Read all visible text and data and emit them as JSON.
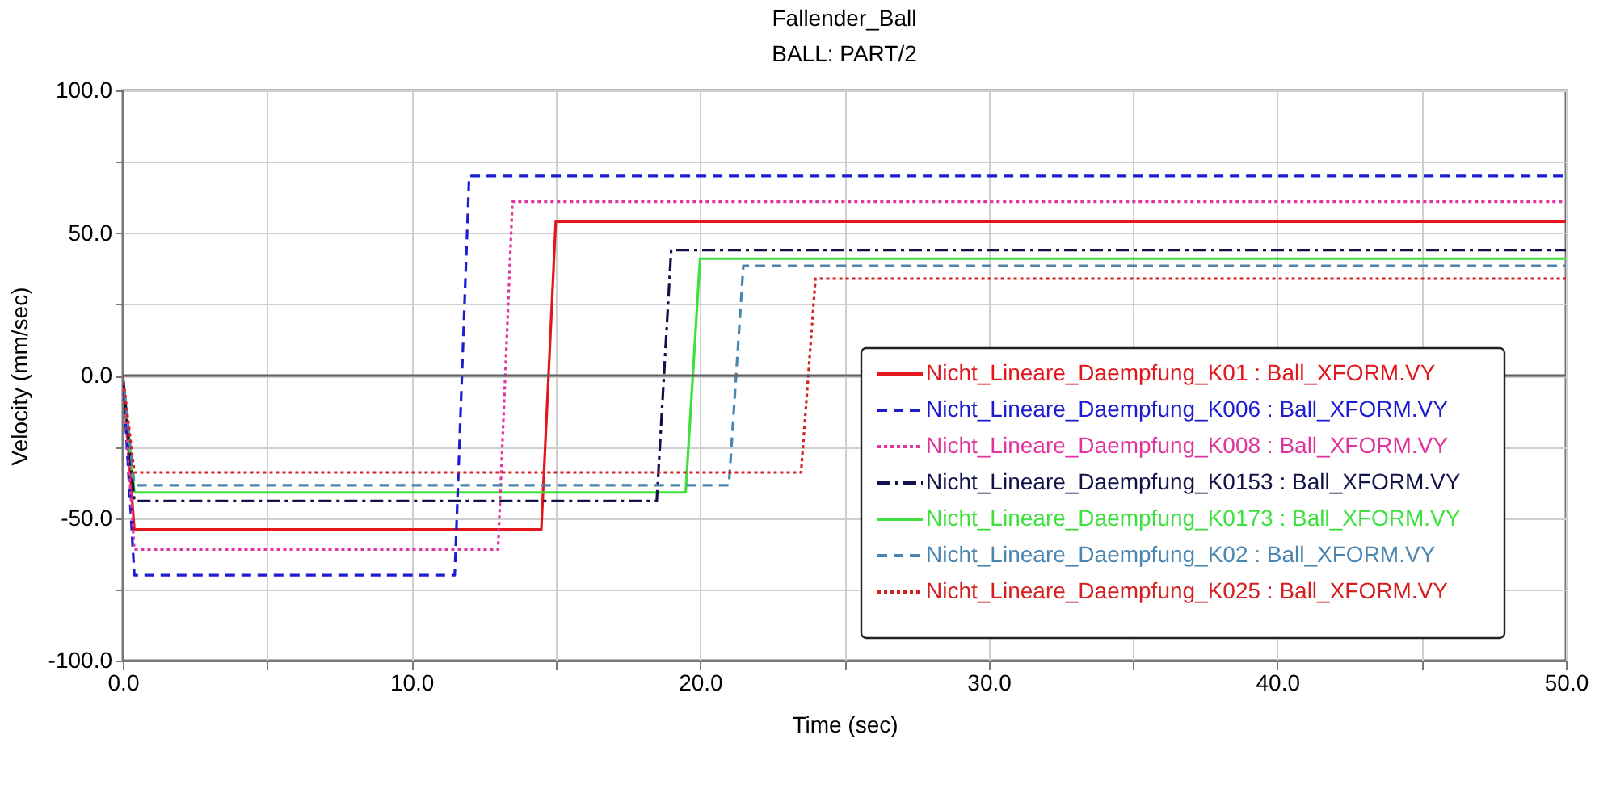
{
  "chart_data": {
    "type": "line",
    "title": "Fallender_Ball",
    "subtitle": "BALL: PART/2",
    "xlabel": "Time (sec)",
    "ylabel": "Velocity (mm/sec)",
    "xlim": [
      0,
      50
    ],
    "ylim": [
      -100,
      100
    ],
    "xticks": [
      {
        "value": 0,
        "label": "0.0"
      },
      {
        "value": 5,
        "label": null
      },
      {
        "value": 10,
        "label": "10.0"
      },
      {
        "value": 15,
        "label": null
      },
      {
        "value": 20,
        "label": "20.0"
      },
      {
        "value": 25,
        "label": null
      },
      {
        "value": 30,
        "label": "30.0"
      },
      {
        "value": 35,
        "label": null
      },
      {
        "value": 40,
        "label": "40.0"
      },
      {
        "value": 45,
        "label": null
      },
      {
        "value": 50,
        "label": "50.0"
      }
    ],
    "yticks": [
      {
        "value": -100,
        "label": "-100.0"
      },
      {
        "value": -75,
        "label": null
      },
      {
        "value": -50,
        "label": "-50.0"
      },
      {
        "value": -25,
        "label": null
      },
      {
        "value": 0,
        "label": "0.0"
      },
      {
        "value": 25,
        "label": null
      },
      {
        "value": 50,
        "label": "50.0"
      },
      {
        "value": 75,
        "label": null
      },
      {
        "value": 100,
        "label": "100.0"
      }
    ],
    "grid": true,
    "legend": "bottom right",
    "ref_lines": [
      {
        "axis": "y",
        "value": 0,
        "color": "#606060"
      }
    ],
    "series": [
      {
        "name": "Nicht_Lineare_Daempfung_K01 : Ball_XFORM.VY",
        "color": "#e3161c",
        "line_style": "solid",
        "x": [
          0,
          0.4,
          14.5,
          15.0,
          50
        ],
        "values": [
          0,
          -54,
          -54,
          54,
          54
        ]
      },
      {
        "name": "Nicht_Lineare_Daempfung_K006 : Ball_XFORM.VY",
        "color": "#1c1cd0",
        "line_style": "dashed",
        "x": [
          0,
          0.4,
          11.5,
          12.0,
          50
        ],
        "values": [
          0,
          -70,
          -70,
          70,
          70
        ]
      },
      {
        "name": "Nicht_Lineare_Daempfung_K008 : Ball_XFORM.VY",
        "color": "#e0359e",
        "line_style": "dotted",
        "x": [
          0,
          0.4,
          13.0,
          13.5,
          50
        ],
        "values": [
          0,
          -61,
          -61,
          61,
          61
        ]
      },
      {
        "name": "Nicht_Lineare_Daempfung_K0153 : Ball_XFORM.VY",
        "color": "#12124a",
        "line_style": "dashdot",
        "x": [
          0,
          0.4,
          18.5,
          19.0,
          50
        ],
        "values": [
          0,
          -44,
          -44,
          44,
          44
        ]
      },
      {
        "name": "Nicht_Lineare_Daempfung_K0173 : Ball_XFORM.VY",
        "color": "#3ee03e",
        "line_style": "solid",
        "x": [
          0,
          0.4,
          19.5,
          20.0,
          50
        ],
        "values": [
          0,
          -41,
          -41,
          41,
          41
        ]
      },
      {
        "name": "Nicht_Lineare_Daempfung_K02 : Ball_XFORM.VY",
        "color": "#4a86b0",
        "line_style": "dashed",
        "x": [
          0,
          0.4,
          21.0,
          21.5,
          50
        ],
        "values": [
          0,
          -38.5,
          -38.5,
          38.5,
          38.5
        ]
      },
      {
        "name": "Nicht_Lineare_Daempfung_K025 : Ball_XFORM.VY",
        "color": "#d42020",
        "line_style": "dotted",
        "x": [
          0,
          0.4,
          23.5,
          24.0,
          50
        ],
        "values": [
          0,
          -34,
          -34,
          34,
          34
        ]
      }
    ]
  }
}
